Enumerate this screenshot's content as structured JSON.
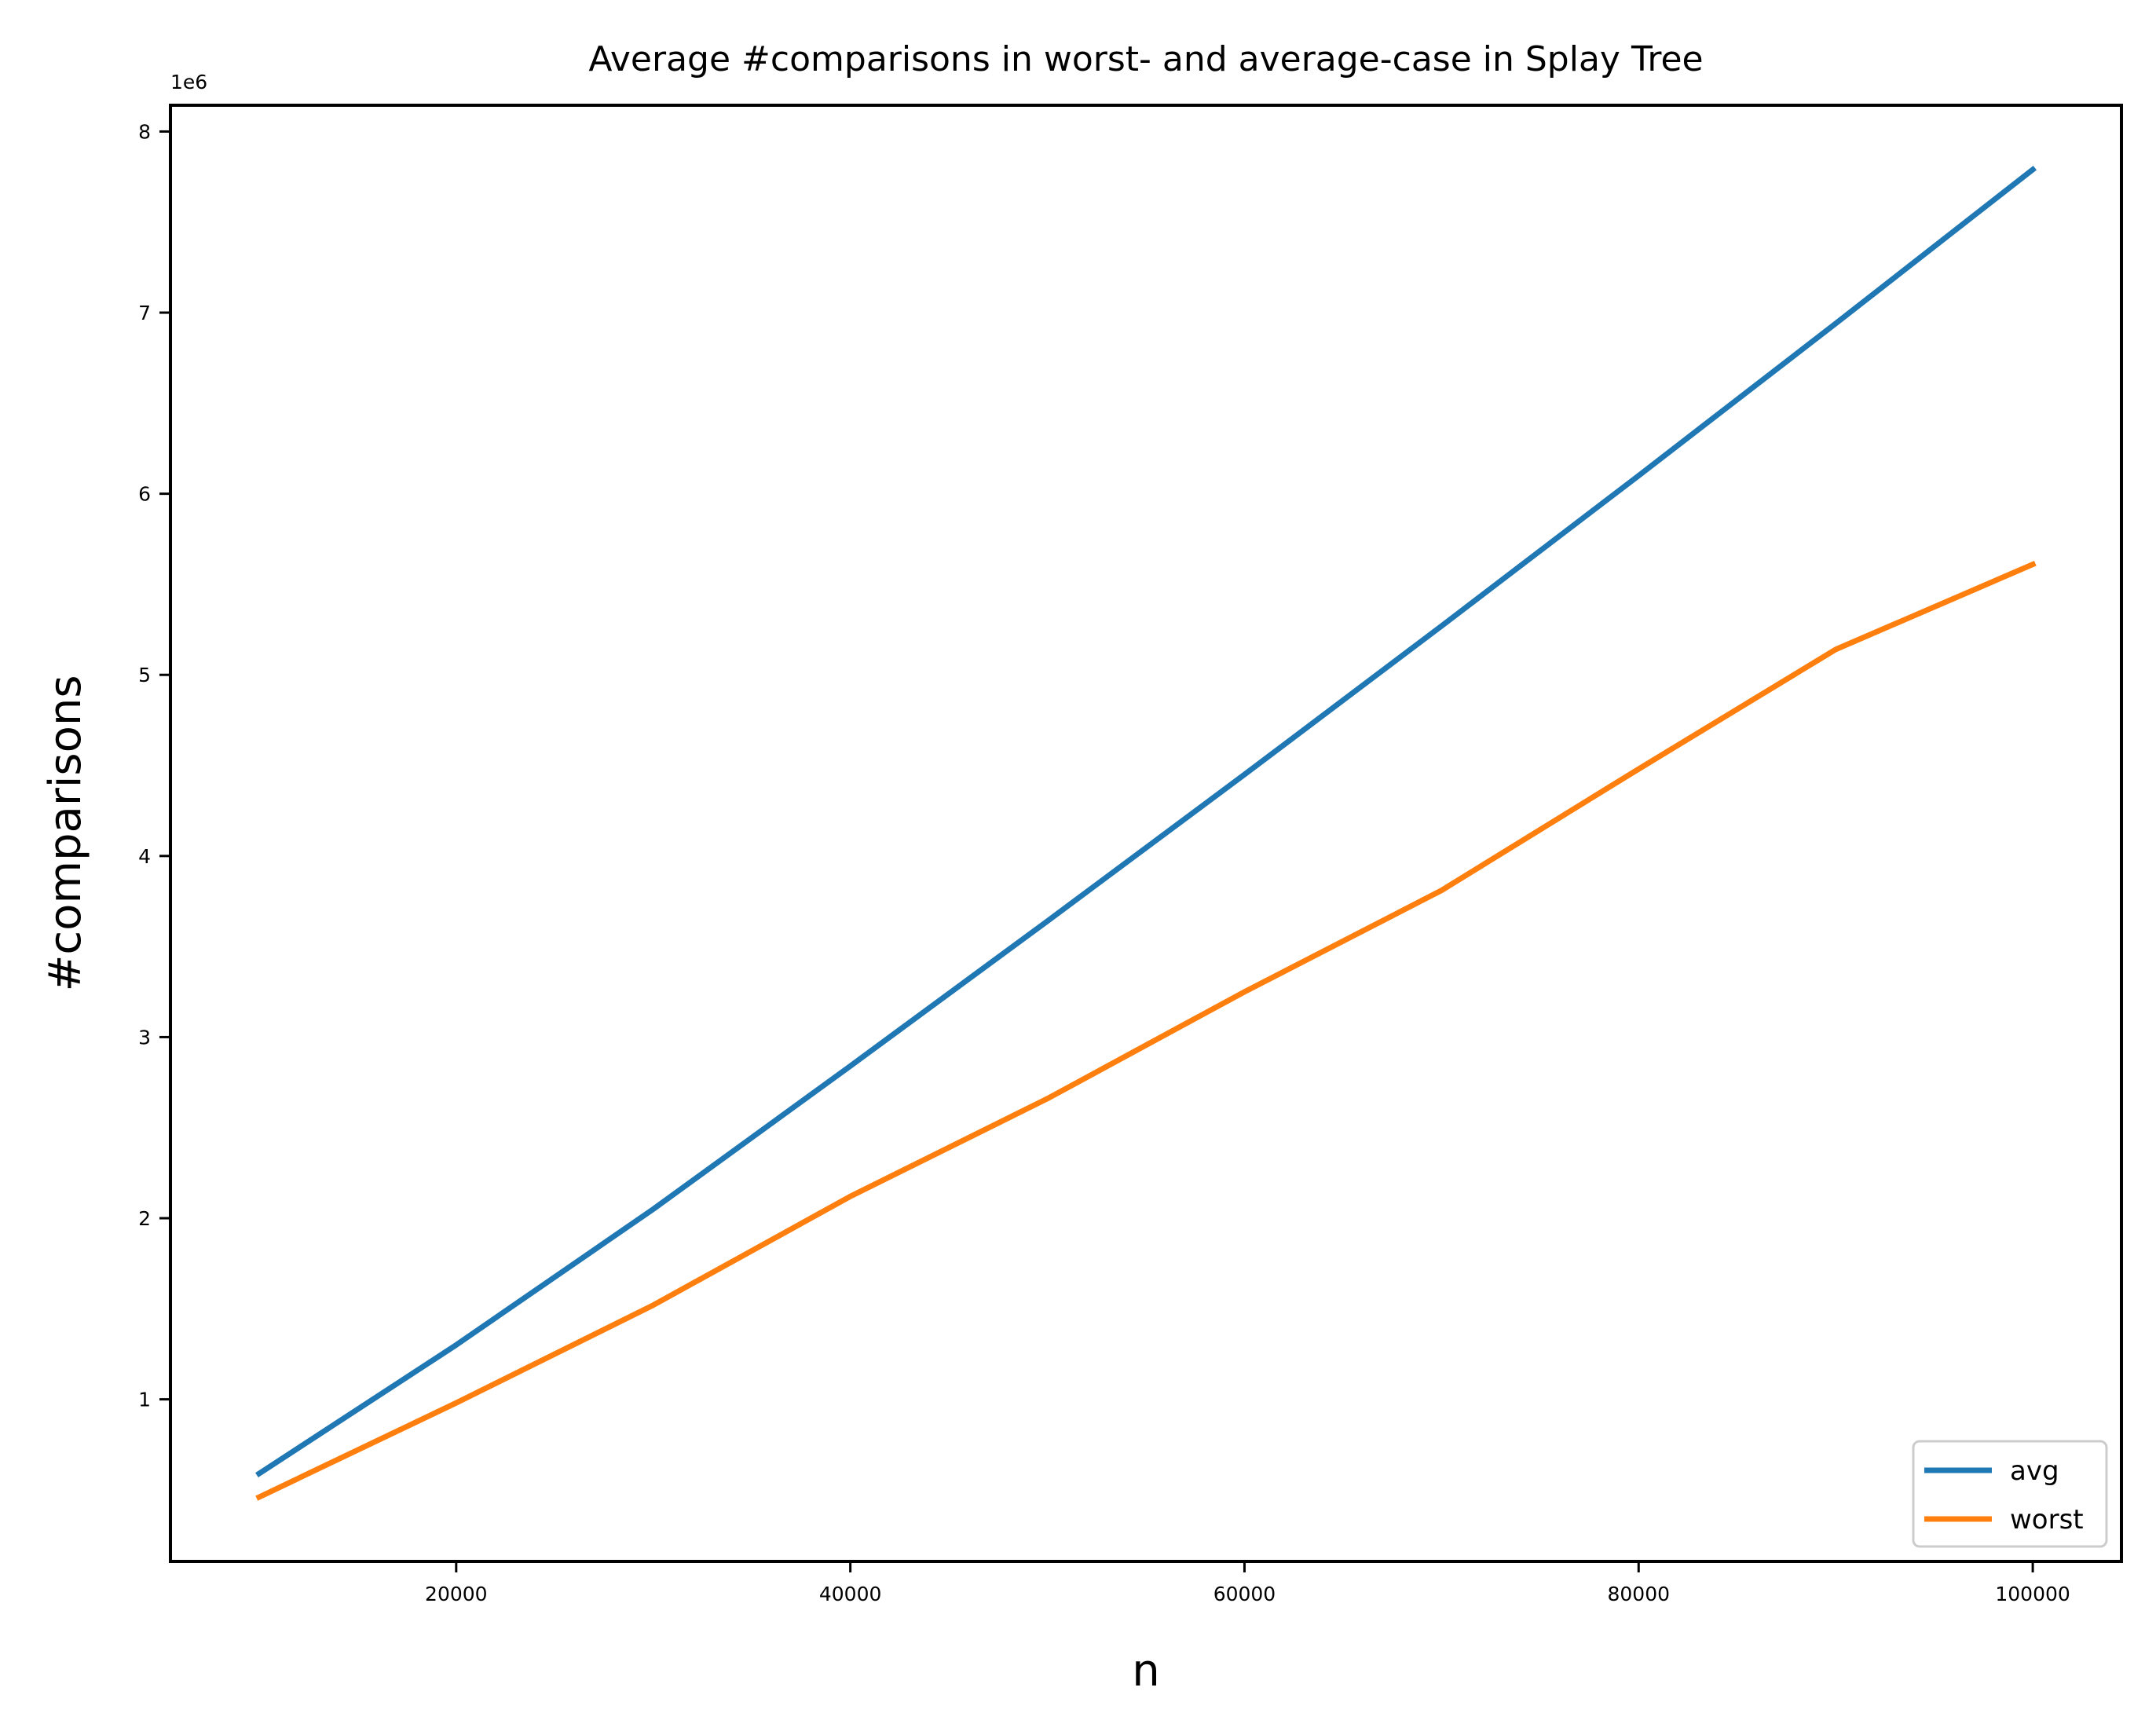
{
  "chart_data": {
    "type": "line",
    "title": "Average #comparisons in worst- and average-case in Splay Tree",
    "xlabel": "n",
    "ylabel": "#comparisons",
    "y_offset_label": "1e6",
    "x": [
      10000,
      20000,
      30000,
      40000,
      50000,
      60000,
      70000,
      80000,
      90000,
      100000
    ],
    "xlim": [
      5500,
      104500
    ],
    "ylim": [
      105000,
      8145000
    ],
    "xticks": [
      20000,
      40000,
      60000,
      80000,
      100000
    ],
    "xtick_labels": [
      "20000",
      "40000",
      "60000",
      "80000",
      "100000"
    ],
    "yticks": [
      1000000,
      2000000,
      3000000,
      4000000,
      5000000,
      6000000,
      7000000,
      8000000
    ],
    "ytick_labels": [
      "1",
      "2",
      "3",
      "4",
      "5",
      "6",
      "7",
      "8"
    ],
    "series": [
      {
        "name": "avg",
        "color": "#1f77b4",
        "values": [
          590000,
          1300000,
          2050000,
          2840000,
          3640000,
          4450000,
          5270000,
          6100000,
          6940000,
          7790000
        ]
      },
      {
        "name": "worst",
        "color": "#ff7f0e",
        "values": [
          460000,
          980000,
          1520000,
          2120000,
          2660000,
          3250000,
          3810000,
          4480000,
          5140000,
          5610000
        ]
      }
    ],
    "legend_position": "lower-right",
    "grid": false
  }
}
